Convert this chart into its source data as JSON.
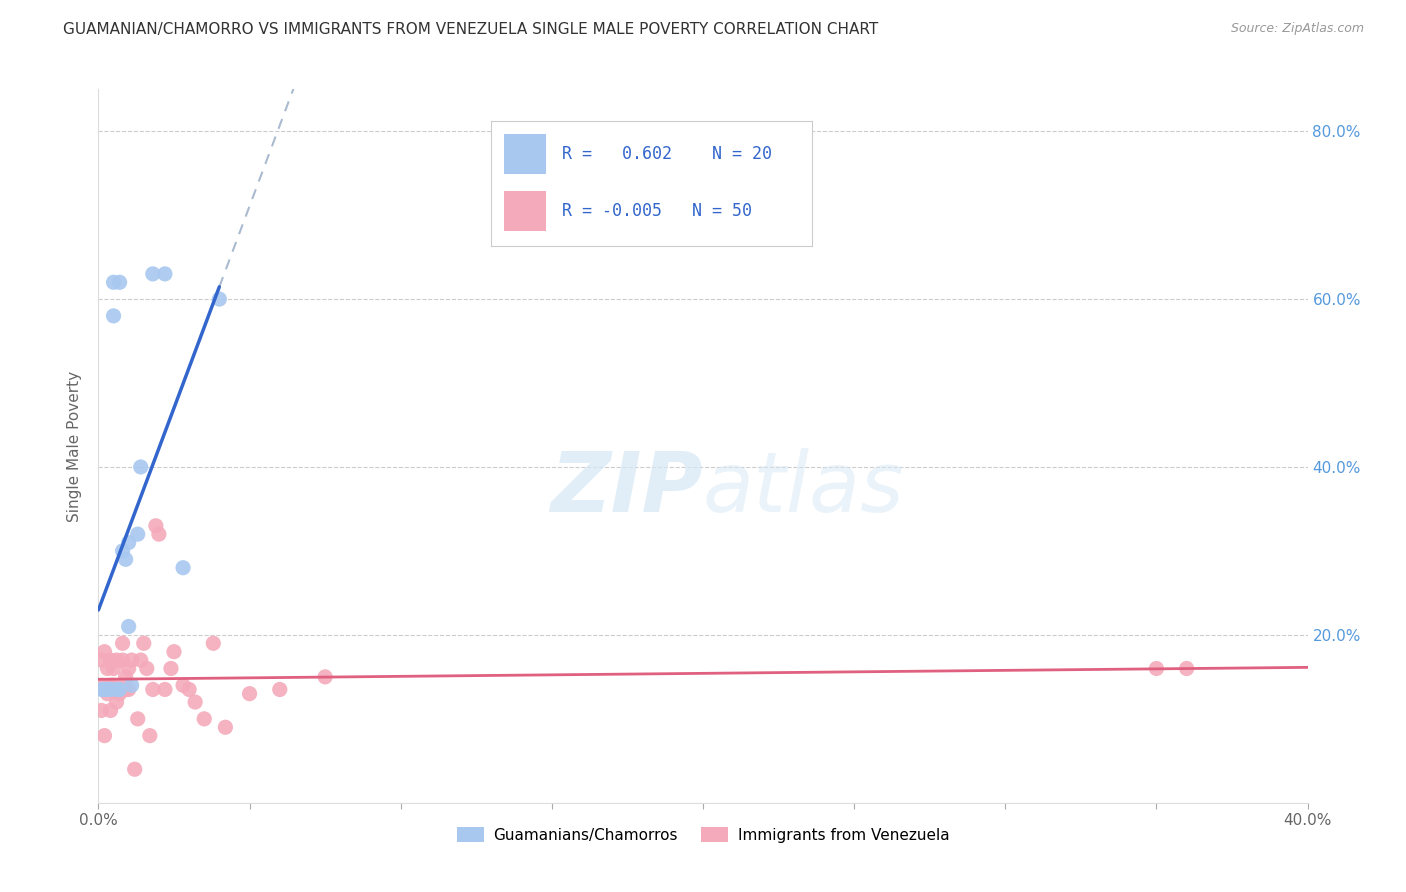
{
  "title": "GUAMANIAN/CHAMORRO VS IMMIGRANTS FROM VENEZUELA SINGLE MALE POVERTY CORRELATION CHART",
  "source": "Source: ZipAtlas.com",
  "legend_label1": "Guamanians/Chamorros",
  "legend_label2": "Immigrants from Venezuela",
  "r1": 0.602,
  "n1": 20,
  "r2": -0.005,
  "n2": 50,
  "blue_color": "#A8C8F0",
  "pink_color": "#F4AABB",
  "line_blue": "#3366CC",
  "line_pink": "#E06080",
  "line_dashed_color": "#AABBD0",
  "watermark_color": "#D5E8F5",
  "ylabel": "Single Male Poverty",
  "guamanian_x": [
    0.001,
    0.002,
    0.003,
    0.004,
    0.005,
    0.005,
    0.006,
    0.007,
    0.007,
    0.008,
    0.009,
    0.01,
    0.01,
    0.011,
    0.013,
    0.014,
    0.018,
    0.022,
    0.028,
    0.04
  ],
  "guamanian_y": [
    0.135,
    0.135,
    0.135,
    0.135,
    0.62,
    0.58,
    0.135,
    0.135,
    0.62,
    0.3,
    0.29,
    0.21,
    0.31,
    0.14,
    0.32,
    0.4,
    0.63,
    0.63,
    0.28,
    0.6
  ],
  "venezuela_x": [
    0.001,
    0.001,
    0.001,
    0.002,
    0.002,
    0.002,
    0.003,
    0.003,
    0.003,
    0.004,
    0.004,
    0.004,
    0.005,
    0.005,
    0.005,
    0.006,
    0.006,
    0.006,
    0.007,
    0.007,
    0.008,
    0.008,
    0.009,
    0.009,
    0.01,
    0.01,
    0.011,
    0.012,
    0.013,
    0.014,
    0.015,
    0.016,
    0.017,
    0.018,
    0.019,
    0.02,
    0.022,
    0.024,
    0.025,
    0.028,
    0.03,
    0.032,
    0.035,
    0.038,
    0.042,
    0.05,
    0.06,
    0.075,
    0.35,
    0.36
  ],
  "venezuela_y": [
    0.14,
    0.11,
    0.17,
    0.135,
    0.08,
    0.18,
    0.16,
    0.13,
    0.135,
    0.11,
    0.14,
    0.17,
    0.135,
    0.14,
    0.16,
    0.135,
    0.17,
    0.12,
    0.13,
    0.135,
    0.17,
    0.19,
    0.135,
    0.15,
    0.135,
    0.16,
    0.17,
    0.04,
    0.1,
    0.17,
    0.19,
    0.16,
    0.08,
    0.135,
    0.33,
    0.32,
    0.135,
    0.16,
    0.18,
    0.14,
    0.135,
    0.12,
    0.1,
    0.19,
    0.09,
    0.13,
    0.135,
    0.15,
    0.16,
    0.16
  ],
  "xmin": 0.0,
  "xmax": 0.4,
  "ymin": 0.0,
  "ymax": 0.85,
  "y_ticks": [
    0.0,
    0.2,
    0.4,
    0.6,
    0.8
  ],
  "y_tick_labels_right": [
    "",
    "20.0%",
    "40.0%",
    "60.0%",
    "80.0%"
  ],
  "x_ticks": [
    0.0,
    0.05,
    0.1,
    0.15,
    0.2,
    0.25,
    0.3,
    0.35,
    0.4
  ],
  "x_tick_labels": [
    "0.0%",
    "",
    "",
    "",
    "",
    "",
    "",
    "",
    "40.0%"
  ]
}
